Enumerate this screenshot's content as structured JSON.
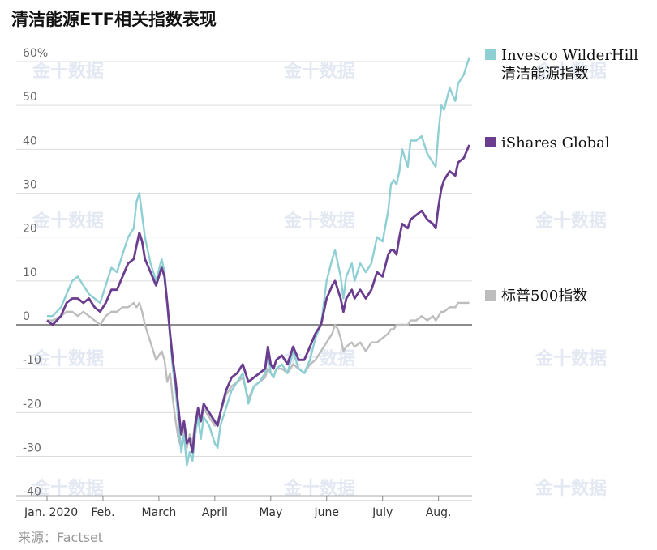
{
  "title": "清洁能源ETF相关指数表现",
  "source": "来源：Factset",
  "watermark": "金十数据",
  "chart_data": {
    "type": "line",
    "title": "清洁能源ETF相关指数表现",
    "x_ticks": [
      "Jan. 2020",
      "Feb.",
      "March",
      "April",
      "May",
      "June",
      "July",
      "Aug."
    ],
    "x_tick_pos": [
      0,
      1,
      2,
      3,
      4,
      5,
      6,
      7
    ],
    "x_range": [
      0,
      7.6
    ],
    "y_ticks": [
      "60%",
      "50",
      "40",
      "30",
      "20",
      "10",
      "0",
      "-10",
      "-20",
      "-30",
      "-40"
    ],
    "y_tick_values": [
      60,
      50,
      40,
      30,
      20,
      10,
      0,
      -10,
      -20,
      -30,
      -40
    ],
    "ylim": [
      -40,
      62
    ],
    "grid": true,
    "legend_placement": "right",
    "series": [
      {
        "name": "Invesco WilderHill 清洁能源指数",
        "name_lines": [
          "Invesco WilderHill",
          "清洁能源指数"
        ],
        "color": "#8ecfd4",
        "points": [
          [
            0,
            2
          ],
          [
            0.1,
            2
          ],
          [
            0.25,
            4
          ],
          [
            0.35,
            7
          ],
          [
            0.45,
            10
          ],
          [
            0.55,
            11
          ],
          [
            0.65,
            9
          ],
          [
            0.75,
            7
          ],
          [
            0.85,
            6
          ],
          [
            0.95,
            5
          ],
          [
            1.05,
            9
          ],
          [
            1.15,
            13
          ],
          [
            1.25,
            12
          ],
          [
            1.35,
            16
          ],
          [
            1.45,
            20
          ],
          [
            1.55,
            22
          ],
          [
            1.6,
            28
          ],
          [
            1.65,
            30
          ],
          [
            1.7,
            25
          ],
          [
            1.75,
            20
          ],
          [
            1.85,
            14
          ],
          [
            1.95,
            10
          ],
          [
            2.05,
            15
          ],
          [
            2.1,
            12
          ],
          [
            2.15,
            5
          ],
          [
            2.2,
            -3
          ],
          [
            2.25,
            -10
          ],
          [
            2.3,
            -15
          ],
          [
            2.35,
            -22
          ],
          [
            2.4,
            -29
          ],
          [
            2.45,
            -25
          ],
          [
            2.5,
            -32
          ],
          [
            2.55,
            -29
          ],
          [
            2.6,
            -31
          ],
          [
            2.65,
            -25
          ],
          [
            2.7,
            -21
          ],
          [
            2.75,
            -26
          ],
          [
            2.8,
            -21
          ],
          [
            2.9,
            -23
          ],
          [
            3.0,
            -27
          ],
          [
            3.05,
            -28
          ],
          [
            3.1,
            -23
          ],
          [
            3.2,
            -19
          ],
          [
            3.3,
            -15
          ],
          [
            3.4,
            -13
          ],
          [
            3.5,
            -11
          ],
          [
            3.6,
            -18
          ],
          [
            3.7,
            -14
          ],
          [
            3.8,
            -13
          ],
          [
            3.9,
            -11
          ],
          [
            3.95,
            -6
          ],
          [
            4.0,
            -11
          ],
          [
            4.05,
            -12
          ],
          [
            4.1,
            -10
          ],
          [
            4.2,
            -9
          ],
          [
            4.3,
            -11
          ],
          [
            4.4,
            -6
          ],
          [
            4.5,
            -10
          ],
          [
            4.6,
            -11
          ],
          [
            4.7,
            -8
          ],
          [
            4.8,
            -3
          ],
          [
            4.9,
            0
          ],
          [
            5.0,
            10
          ],
          [
            5.1,
            15
          ],
          [
            5.15,
            17
          ],
          [
            5.2,
            14
          ],
          [
            5.25,
            11
          ],
          [
            5.3,
            6
          ],
          [
            5.35,
            11
          ],
          [
            5.45,
            14
          ],
          [
            5.5,
            10
          ],
          [
            5.6,
            14
          ],
          [
            5.7,
            12
          ],
          [
            5.8,
            14
          ],
          [
            5.9,
            20
          ],
          [
            6.0,
            19
          ],
          [
            6.1,
            26
          ],
          [
            6.15,
            32
          ],
          [
            6.2,
            33
          ],
          [
            6.25,
            32
          ],
          [
            6.3,
            35
          ],
          [
            6.35,
            40
          ],
          [
            6.45,
            36
          ],
          [
            6.5,
            42
          ],
          [
            6.6,
            42
          ],
          [
            6.7,
            43
          ],
          [
            6.8,
            39
          ],
          [
            6.9,
            37
          ],
          [
            6.95,
            36
          ],
          [
            7.0,
            44
          ],
          [
            7.05,
            50
          ],
          [
            7.1,
            49
          ],
          [
            7.2,
            54
          ],
          [
            7.3,
            51
          ],
          [
            7.35,
            55
          ],
          [
            7.45,
            57
          ],
          [
            7.55,
            61
          ]
        ]
      },
      {
        "name": "iShares Global",
        "name_lines": [
          "iShares Global"
        ],
        "color": "#6a3d8f",
        "points": [
          [
            0,
            1
          ],
          [
            0.1,
            0
          ],
          [
            0.25,
            2
          ],
          [
            0.35,
            5
          ],
          [
            0.45,
            6
          ],
          [
            0.55,
            6
          ],
          [
            0.65,
            5
          ],
          [
            0.75,
            6
          ],
          [
            0.85,
            4
          ],
          [
            0.95,
            3
          ],
          [
            1.05,
            5
          ],
          [
            1.15,
            8
          ],
          [
            1.25,
            8
          ],
          [
            1.35,
            11
          ],
          [
            1.45,
            14
          ],
          [
            1.55,
            15
          ],
          [
            1.6,
            18
          ],
          [
            1.65,
            21
          ],
          [
            1.7,
            19
          ],
          [
            1.75,
            15
          ],
          [
            1.85,
            12
          ],
          [
            1.95,
            9
          ],
          [
            2.05,
            13
          ],
          [
            2.1,
            11
          ],
          [
            2.15,
            5
          ],
          [
            2.2,
            -2
          ],
          [
            2.25,
            -8
          ],
          [
            2.3,
            -13
          ],
          [
            2.35,
            -19
          ],
          [
            2.4,
            -25
          ],
          [
            2.45,
            -22
          ],
          [
            2.5,
            -27
          ],
          [
            2.55,
            -26
          ],
          [
            2.6,
            -29
          ],
          [
            2.65,
            -23
          ],
          [
            2.7,
            -19
          ],
          [
            2.75,
            -22
          ],
          [
            2.8,
            -18
          ],
          [
            2.9,
            -20
          ],
          [
            3.0,
            -22
          ],
          [
            3.05,
            -23
          ],
          [
            3.1,
            -20
          ],
          [
            3.2,
            -15
          ],
          [
            3.3,
            -12
          ],
          [
            3.4,
            -11
          ],
          [
            3.5,
            -9
          ],
          [
            3.6,
            -13
          ],
          [
            3.7,
            -12
          ],
          [
            3.8,
            -11
          ],
          [
            3.9,
            -10
          ],
          [
            3.95,
            -5
          ],
          [
            4.0,
            -9
          ],
          [
            4.05,
            -10
          ],
          [
            4.1,
            -8
          ],
          [
            4.2,
            -7
          ],
          [
            4.3,
            -9
          ],
          [
            4.4,
            -5
          ],
          [
            4.5,
            -8
          ],
          [
            4.6,
            -8
          ],
          [
            4.7,
            -5
          ],
          [
            4.8,
            -2
          ],
          [
            4.9,
            0
          ],
          [
            5.0,
            6
          ],
          [
            5.1,
            9
          ],
          [
            5.15,
            10
          ],
          [
            5.2,
            8
          ],
          [
            5.25,
            6
          ],
          [
            5.3,
            3
          ],
          [
            5.35,
            6
          ],
          [
            5.45,
            8
          ],
          [
            5.5,
            6
          ],
          [
            5.6,
            8
          ],
          [
            5.7,
            6
          ],
          [
            5.8,
            8
          ],
          [
            5.9,
            12
          ],
          [
            6.0,
            11
          ],
          [
            6.1,
            16
          ],
          [
            6.15,
            17
          ],
          [
            6.2,
            17
          ],
          [
            6.25,
            16
          ],
          [
            6.3,
            20
          ],
          [
            6.35,
            23
          ],
          [
            6.45,
            22
          ],
          [
            6.5,
            24
          ],
          [
            6.6,
            25
          ],
          [
            6.7,
            26
          ],
          [
            6.8,
            24
          ],
          [
            6.9,
            23
          ],
          [
            6.95,
            22
          ],
          [
            7.0,
            27
          ],
          [
            7.05,
            31
          ],
          [
            7.1,
            33
          ],
          [
            7.2,
            35
          ],
          [
            7.3,
            34
          ],
          [
            7.35,
            37
          ],
          [
            7.45,
            38
          ],
          [
            7.55,
            41
          ]
        ]
      },
      {
        "name": "标普500指数",
        "name_lines": [
          "标普500指数"
        ],
        "color": "#bdbdbd",
        "points": [
          [
            0,
            1
          ],
          [
            0.1,
            1
          ],
          [
            0.25,
            2
          ],
          [
            0.35,
            3
          ],
          [
            0.45,
            3
          ],
          [
            0.55,
            2
          ],
          [
            0.65,
            3
          ],
          [
            0.75,
            2
          ],
          [
            0.85,
            1
          ],
          [
            0.95,
            0
          ],
          [
            1.05,
            2
          ],
          [
            1.15,
            3
          ],
          [
            1.25,
            3
          ],
          [
            1.35,
            4
          ],
          [
            1.45,
            4
          ],
          [
            1.55,
            5
          ],
          [
            1.6,
            4
          ],
          [
            1.65,
            5
          ],
          [
            1.7,
            3
          ],
          [
            1.75,
            0
          ],
          [
            1.85,
            -4
          ],
          [
            1.95,
            -8
          ],
          [
            2.05,
            -6
          ],
          [
            2.1,
            -8
          ],
          [
            2.15,
            -13
          ],
          [
            2.2,
            -11
          ],
          [
            2.25,
            -17
          ],
          [
            2.3,
            -22
          ],
          [
            2.35,
            -26
          ],
          [
            2.4,
            -28
          ],
          [
            2.45,
            -24
          ],
          [
            2.5,
            -28
          ],
          [
            2.55,
            -25
          ],
          [
            2.6,
            -27
          ],
          [
            2.65,
            -22
          ],
          [
            2.7,
            -19
          ],
          [
            2.75,
            -22
          ],
          [
            2.8,
            -19
          ],
          [
            2.9,
            -21
          ],
          [
            3.0,
            -23
          ],
          [
            3.05,
            -22
          ],
          [
            3.1,
            -20
          ],
          [
            3.2,
            -16
          ],
          [
            3.3,
            -14
          ],
          [
            3.4,
            -13
          ],
          [
            3.5,
            -12
          ],
          [
            3.6,
            -17
          ],
          [
            3.7,
            -14
          ],
          [
            3.8,
            -13
          ],
          [
            3.9,
            -12
          ],
          [
            3.95,
            -10
          ],
          [
            4.0,
            -11
          ],
          [
            4.05,
            -12
          ],
          [
            4.1,
            -10
          ],
          [
            4.2,
            -10
          ],
          [
            4.3,
            -11
          ],
          [
            4.4,
            -9
          ],
          [
            4.5,
            -10
          ],
          [
            4.6,
            -11
          ],
          [
            4.7,
            -9
          ],
          [
            4.8,
            -8
          ],
          [
            4.9,
            -6
          ],
          [
            5.0,
            -4
          ],
          [
            5.1,
            -2
          ],
          [
            5.15,
            0
          ],
          [
            5.2,
            -1
          ],
          [
            5.25,
            -3
          ],
          [
            5.3,
            -6
          ],
          [
            5.35,
            -5
          ],
          [
            5.45,
            -4
          ],
          [
            5.5,
            -5
          ],
          [
            5.6,
            -4
          ],
          [
            5.7,
            -6
          ],
          [
            5.8,
            -4
          ],
          [
            5.9,
            -4
          ],
          [
            6.0,
            -3
          ],
          [
            6.1,
            -2
          ],
          [
            6.15,
            -1
          ],
          [
            6.2,
            -1
          ],
          [
            6.25,
            0
          ],
          [
            6.3,
            0
          ],
          [
            6.35,
            0
          ],
          [
            6.45,
            0
          ],
          [
            6.5,
            1
          ],
          [
            6.6,
            1
          ],
          [
            6.7,
            2
          ],
          [
            6.8,
            1
          ],
          [
            6.9,
            2
          ],
          [
            6.95,
            1
          ],
          [
            7.0,
            2
          ],
          [
            7.05,
            3
          ],
          [
            7.1,
            3
          ],
          [
            7.2,
            4
          ],
          [
            7.3,
            4
          ],
          [
            7.35,
            5
          ],
          [
            7.45,
            5
          ],
          [
            7.55,
            5
          ]
        ]
      }
    ]
  }
}
